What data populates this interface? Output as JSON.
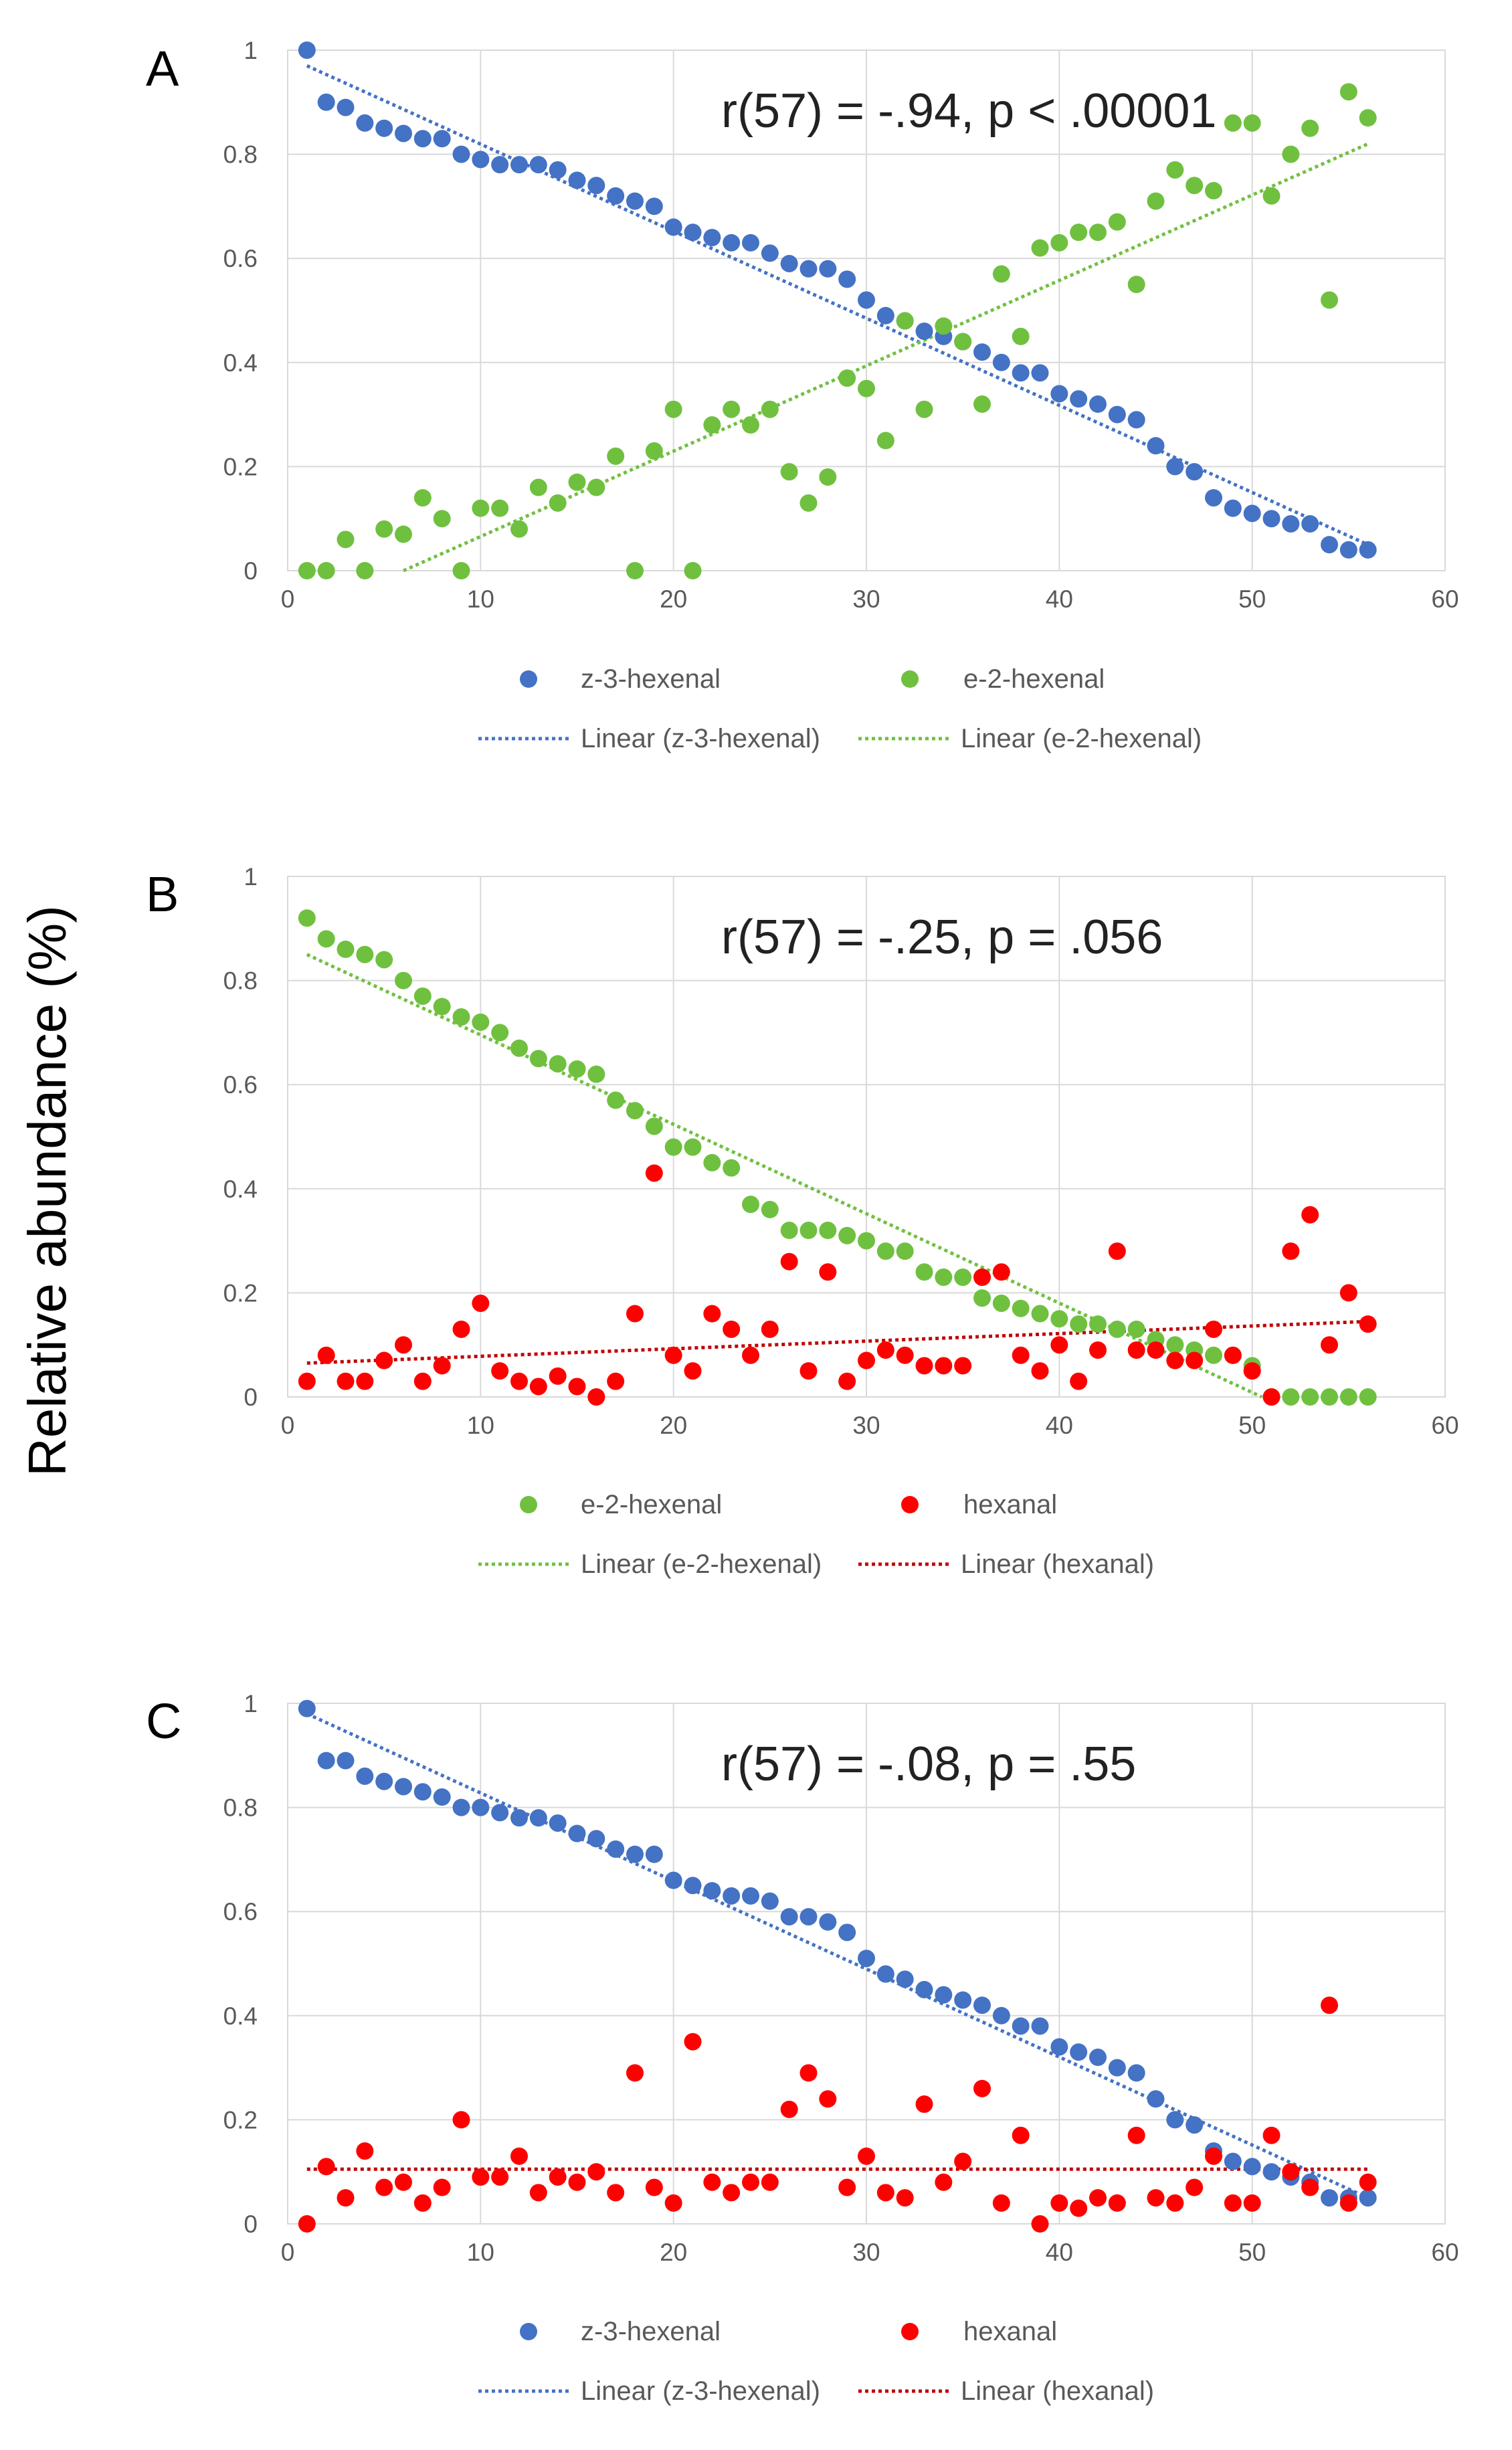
{
  "figure": {
    "ylabel": "Relative abundance (%)"
  },
  "chart_data": [
    {
      "type": "scatter",
      "panel": "A",
      "annotation": "r(57) = -.94, p < .00001",
      "xlim": [
        0,
        60
      ],
      "ylim": [
        0,
        1
      ],
      "xticks": [
        "0",
        "10",
        "20",
        "30",
        "40",
        "50",
        "60"
      ],
      "yticks": [
        "0",
        "0.2",
        "0.4",
        "0.6",
        "0.8",
        "1"
      ],
      "grid": true,
      "legend_position": "bottom",
      "series": [
        {
          "name": "z-3-hexenal",
          "color": "#4472c4",
          "x": [
            1,
            2,
            3,
            4,
            5,
            6,
            7,
            8,
            9,
            10,
            11,
            12,
            13,
            14,
            15,
            16,
            17,
            18,
            19,
            20,
            21,
            22,
            23,
            24,
            25,
            26,
            27,
            28,
            29,
            30,
            31,
            32,
            33,
            34,
            35,
            36,
            37,
            38,
            39,
            40,
            41,
            42,
            43,
            44,
            45,
            46,
            47,
            48,
            49,
            50,
            51,
            52,
            53,
            54,
            55,
            56
          ],
          "y": [
            1.0,
            0.9,
            0.89,
            0.86,
            0.85,
            0.84,
            0.83,
            0.83,
            0.8,
            0.79,
            0.78,
            0.78,
            0.78,
            0.77,
            0.75,
            0.74,
            0.72,
            0.71,
            0.7,
            0.66,
            0.65,
            0.64,
            0.63,
            0.63,
            0.61,
            0.59,
            0.58,
            0.58,
            0.56,
            0.52,
            0.49,
            0.48,
            0.46,
            0.45,
            0.44,
            0.42,
            0.4,
            0.38,
            0.38,
            0.34,
            0.33,
            0.32,
            0.3,
            0.29,
            0.24,
            0.2,
            0.19,
            0.14,
            0.12,
            0.11,
            0.1,
            0.09,
            0.09,
            0.05,
            0.04,
            0.04
          ]
        },
        {
          "name": "e-2-hexenal",
          "color": "#70c040",
          "x": [
            1,
            2,
            3,
            4,
            5,
            6,
            7,
            8,
            9,
            10,
            11,
            12,
            13,
            14,
            15,
            16,
            17,
            18,
            19,
            20,
            21,
            22,
            23,
            24,
            25,
            26,
            27,
            28,
            29,
            30,
            31,
            32,
            33,
            34,
            35,
            36,
            37,
            38,
            39,
            40,
            41,
            42,
            43,
            44,
            45,
            46,
            47,
            48,
            49,
            50,
            51,
            52,
            53,
            54,
            55,
            56
          ],
          "y": [
            0.0,
            0.0,
            0.06,
            0.0,
            0.08,
            0.07,
            0.14,
            0.1,
            0.0,
            0.12,
            0.12,
            0.08,
            0.16,
            0.13,
            0.17,
            0.16,
            0.22,
            0.0,
            0.23,
            0.31,
            0.0,
            0.28,
            0.31,
            0.28,
            0.31,
            0.19,
            0.13,
            0.18,
            0.37,
            0.35,
            0.25,
            0.48,
            0.31,
            0.47,
            0.44,
            0.32,
            0.57,
            0.45,
            0.62,
            0.63,
            0.65,
            0.65,
            0.67,
            0.55,
            0.71,
            0.77,
            0.74,
            0.73,
            0.86,
            0.86,
            0.72,
            0.8,
            0.85,
            0.52,
            0.92,
            0.87
          ]
        }
      ],
      "trendlines": [
        {
          "name": "Linear (z-3-hexenal)",
          "color": "#4472c4",
          "x": [
            1,
            56
          ],
          "y": [
            0.97,
            0.05
          ]
        },
        {
          "name": "Linear (e-2-hexenal)",
          "color": "#70c040",
          "x": [
            6,
            56
          ],
          "y": [
            0.0,
            0.82
          ]
        }
      ]
    },
    {
      "type": "scatter",
      "panel": "B",
      "annotation": "r(57) = -.25, p = .056",
      "xlim": [
        0,
        60
      ],
      "ylim": [
        0,
        1
      ],
      "xticks": [
        "0",
        "10",
        "20",
        "30",
        "40",
        "50",
        "60"
      ],
      "yticks": [
        "0",
        "0.2",
        "0.4",
        "0.6",
        "0.8",
        "1"
      ],
      "grid": true,
      "legend_position": "bottom",
      "series": [
        {
          "name": "e-2-hexenal",
          "color": "#70c040",
          "x": [
            1,
            2,
            3,
            4,
            5,
            6,
            7,
            8,
            9,
            10,
            11,
            12,
            13,
            14,
            15,
            16,
            17,
            18,
            19,
            20,
            21,
            22,
            23,
            24,
            25,
            26,
            27,
            28,
            29,
            30,
            31,
            32,
            33,
            34,
            35,
            36,
            37,
            38,
            39,
            40,
            41,
            42,
            43,
            44,
            45,
            46,
            47,
            48,
            49,
            50,
            51,
            52,
            53,
            54,
            55,
            56
          ],
          "y": [
            0.92,
            0.88,
            0.86,
            0.85,
            0.84,
            0.8,
            0.77,
            0.75,
            0.73,
            0.72,
            0.7,
            0.67,
            0.65,
            0.64,
            0.63,
            0.62,
            0.57,
            0.55,
            0.52,
            0.48,
            0.48,
            0.45,
            0.44,
            0.37,
            0.36,
            0.32,
            0.32,
            0.32,
            0.31,
            0.3,
            0.28,
            0.28,
            0.24,
            0.23,
            0.23,
            0.19,
            0.18,
            0.17,
            0.16,
            0.15,
            0.14,
            0.14,
            0.13,
            0.13,
            0.11,
            0.1,
            0.09,
            0.08,
            0.08,
            0.06,
            0.0,
            0.0,
            0.0,
            0.0,
            0.0,
            0.0
          ]
        },
        {
          "name": "hexanal",
          "color": "#ff0000",
          "x": [
            1,
            2,
            3,
            4,
            5,
            6,
            7,
            8,
            9,
            10,
            11,
            12,
            13,
            14,
            15,
            16,
            17,
            18,
            19,
            20,
            21,
            22,
            23,
            24,
            25,
            26,
            27,
            28,
            29,
            30,
            31,
            32,
            33,
            34,
            35,
            36,
            37,
            38,
            39,
            40,
            41,
            42,
            43,
            44,
            45,
            46,
            47,
            48,
            49,
            50,
            51,
            52,
            53,
            54,
            55,
            56
          ],
          "y": [
            0.03,
            0.08,
            0.03,
            0.03,
            0.07,
            0.1,
            0.03,
            0.06,
            0.13,
            0.18,
            0.05,
            0.03,
            0.02,
            0.04,
            0.02,
            0.0,
            0.03,
            0.16,
            0.43,
            0.08,
            0.05,
            0.16,
            0.13,
            0.08,
            0.13,
            0.26,
            0.05,
            0.24,
            0.03,
            0.07,
            0.09,
            0.08,
            0.06,
            0.06,
            0.06,
            0.23,
            0.24,
            0.08,
            0.05,
            0.1,
            0.03,
            0.09,
            0.28,
            0.09,
            0.09,
            0.07,
            0.07,
            0.13,
            0.08,
            0.05,
            0.0,
            0.28,
            0.35,
            0.1,
            0.2,
            0.14
          ]
        }
      ],
      "trendlines": [
        {
          "name": "Linear (e-2-hexenal)",
          "color": "#70c040",
          "x": [
            1,
            50.5
          ],
          "y": [
            0.85,
            0.0
          ]
        },
        {
          "name": "Linear (hexanal)",
          "color": "#c00000",
          "x": [
            1,
            56
          ],
          "y": [
            0.065,
            0.145
          ]
        }
      ]
    },
    {
      "type": "scatter",
      "panel": "C",
      "annotation": "r(57) = -.08, p = .55",
      "xlim": [
        0,
        60
      ],
      "ylim": [
        0,
        1
      ],
      "xticks": [
        "0",
        "10",
        "20",
        "30",
        "40",
        "50",
        "60"
      ],
      "yticks": [
        "0",
        "0.2",
        "0.4",
        "0.6",
        "0.8",
        "1"
      ],
      "grid": true,
      "legend_position": "bottom",
      "series": [
        {
          "name": "z-3-hexenal",
          "color": "#4472c4",
          "x": [
            1,
            2,
            3,
            4,
            5,
            6,
            7,
            8,
            9,
            10,
            11,
            12,
            13,
            14,
            15,
            16,
            17,
            18,
            19,
            20,
            21,
            22,
            23,
            24,
            25,
            26,
            27,
            28,
            29,
            30,
            31,
            32,
            33,
            34,
            35,
            36,
            37,
            38,
            39,
            40,
            41,
            42,
            43,
            44,
            45,
            46,
            47,
            48,
            49,
            50,
            51,
            52,
            53,
            54,
            55,
            56
          ],
          "y": [
            0.99,
            0.89,
            0.89,
            0.86,
            0.85,
            0.84,
            0.83,
            0.82,
            0.8,
            0.8,
            0.79,
            0.78,
            0.78,
            0.77,
            0.75,
            0.74,
            0.72,
            0.71,
            0.71,
            0.66,
            0.65,
            0.64,
            0.63,
            0.63,
            0.62,
            0.59,
            0.59,
            0.58,
            0.56,
            0.51,
            0.48,
            0.47,
            0.45,
            0.44,
            0.43,
            0.42,
            0.4,
            0.38,
            0.38,
            0.34,
            0.33,
            0.32,
            0.3,
            0.29,
            0.24,
            0.2,
            0.19,
            0.14,
            0.12,
            0.11,
            0.1,
            0.09,
            0.08,
            0.05,
            0.05,
            0.05
          ]
        },
        {
          "name": "hexanal",
          "color": "#ff0000",
          "x": [
            1,
            2,
            3,
            4,
            5,
            6,
            7,
            8,
            9,
            10,
            11,
            12,
            13,
            14,
            15,
            16,
            17,
            18,
            19,
            20,
            21,
            22,
            23,
            24,
            25,
            26,
            27,
            28,
            29,
            30,
            31,
            32,
            33,
            34,
            35,
            36,
            37,
            38,
            39,
            40,
            41,
            42,
            43,
            44,
            45,
            46,
            47,
            48,
            49,
            50,
            51,
            52,
            53,
            54,
            55,
            56
          ],
          "y": [
            0.0,
            0.11,
            0.05,
            0.14,
            0.07,
            0.08,
            0.04,
            0.07,
            0.2,
            0.09,
            0.09,
            0.13,
            0.06,
            0.09,
            0.08,
            0.1,
            0.06,
            0.29,
            0.07,
            0.04,
            0.35,
            0.08,
            0.06,
            0.08,
            0.08,
            0.22,
            0.29,
            0.24,
            0.07,
            0.13,
            0.06,
            0.05,
            0.23,
            0.08,
            0.12,
            0.26,
            0.04,
            0.17,
            0.0,
            0.04,
            0.03,
            0.05,
            0.04,
            0.17,
            0.05,
            0.04,
            0.07,
            0.13,
            0.04,
            0.04,
            0.17,
            0.1,
            0.07,
            0.42,
            0.04,
            0.08
          ]
        }
      ],
      "trendlines": [
        {
          "name": "Linear (z-3-hexenal)",
          "color": "#4472c4",
          "x": [
            1,
            56
          ],
          "y": [
            0.98,
            0.05
          ]
        },
        {
          "name": "Linear (hexanal)",
          "color": "#c00000",
          "x": [
            1,
            56
          ],
          "y": [
            0.105,
            0.105
          ]
        }
      ]
    }
  ]
}
